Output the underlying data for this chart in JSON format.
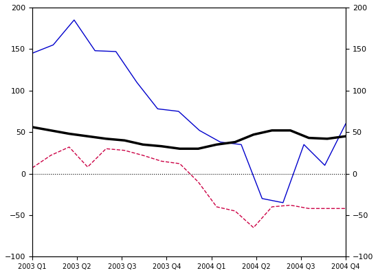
{
  "x_labels": [
    "2003 Q1",
    "2003 Q2",
    "2003 Q3",
    "2003 Q4",
    "2004 Q1",
    "2004 Q2",
    "2004 Q3",
    "2004 Q4"
  ],
  "x_ticks": [
    0,
    2,
    4,
    6,
    8,
    10,
    12,
    14
  ],
  "blue_line": [
    145,
    155,
    185,
    148,
    147,
    110,
    78,
    75,
    52,
    38,
    35,
    -30,
    -35,
    35,
    10,
    60
  ],
  "black_line": [
    56,
    52,
    48,
    45,
    42,
    40,
    35,
    33,
    30,
    30,
    35,
    38,
    47,
    52,
    52,
    43,
    42,
    45
  ],
  "red_dashed": [
    7,
    22,
    32,
    8,
    30,
    28,
    22,
    15,
    12,
    -10,
    -40,
    -45,
    -65,
    -40,
    -38,
    -42,
    -42,
    -42
  ],
  "ylim": [
    -100,
    200
  ],
  "yticks": [
    -100,
    -50,
    0,
    50,
    100,
    150,
    200
  ],
  "background_color": "#ffffff",
  "blue_color": "#0000cc",
  "black_color": "#000000",
  "red_color": "#cc0044",
  "zero_line_color": "#000000",
  "axis_color": "#000000"
}
